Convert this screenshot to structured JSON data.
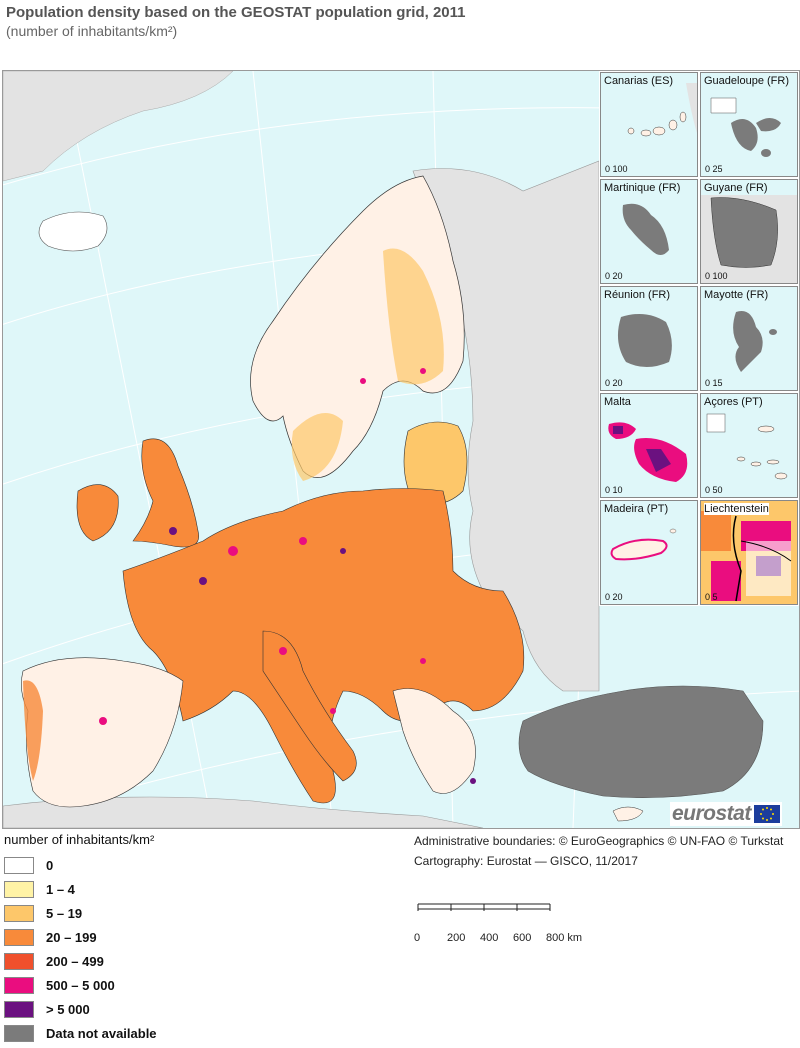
{
  "header": {
    "title": "Population density based on the GEOSTAT population grid, 2011",
    "subtitle": "(number of inhabitants/km²)"
  },
  "colors": {
    "sea": "#dff7f9",
    "non_eu_land": "#e3e3e3",
    "not_available": "#7b7b7b",
    "border": "#000000"
  },
  "insets": [
    {
      "label": "Canarias (ES)",
      "scale": "0  100"
    },
    {
      "label": "Guadeloupe (FR)",
      "scale": "0  25"
    },
    {
      "label": "Martinique (FR)",
      "scale": "0  20"
    },
    {
      "label": "Guyane (FR)",
      "scale": "0  100"
    },
    {
      "label": "Réunion (FR)",
      "scale": "0  20"
    },
    {
      "label": "Mayotte (FR)",
      "scale": "0  15"
    },
    {
      "label": "Malta",
      "scale": "0  10"
    },
    {
      "label": "Açores (PT)",
      "scale": "0  50"
    },
    {
      "label": "Madeira (PT)",
      "scale": "0  20"
    },
    {
      "label": "Liechtenstein",
      "scale": "0  5"
    }
  ],
  "logo": {
    "text": "eurostat"
  },
  "legend": {
    "title": "number of inhabitants/km²",
    "items": [
      {
        "label": "0",
        "color": "#ffffff"
      },
      {
        "label": "1 – 4",
        "color": "#fff3a6"
      },
      {
        "label": "5 – 19",
        "color": "#fdc76a"
      },
      {
        "label": "20 – 199",
        "color": "#f88a3a"
      },
      {
        "label": "200 – 499",
        "color": "#f0502c"
      },
      {
        "label": "500 – 5 000",
        "color": "#ea0d7f"
      },
      {
        "label": "> 5 000",
        "color": "#6b1180"
      },
      {
        "label": "Data not available",
        "color": "#7b7b7b"
      }
    ]
  },
  "credits": {
    "line1": "Administrative boundaries: © EuroGeographics © UN-FAO © Turkstat",
    "line2": "Cartography: Eurostat — GISCO, 11/2017"
  },
  "scalebar": {
    "ticks": [
      "0",
      "200",
      "400",
      "600",
      "800 km"
    ]
  }
}
